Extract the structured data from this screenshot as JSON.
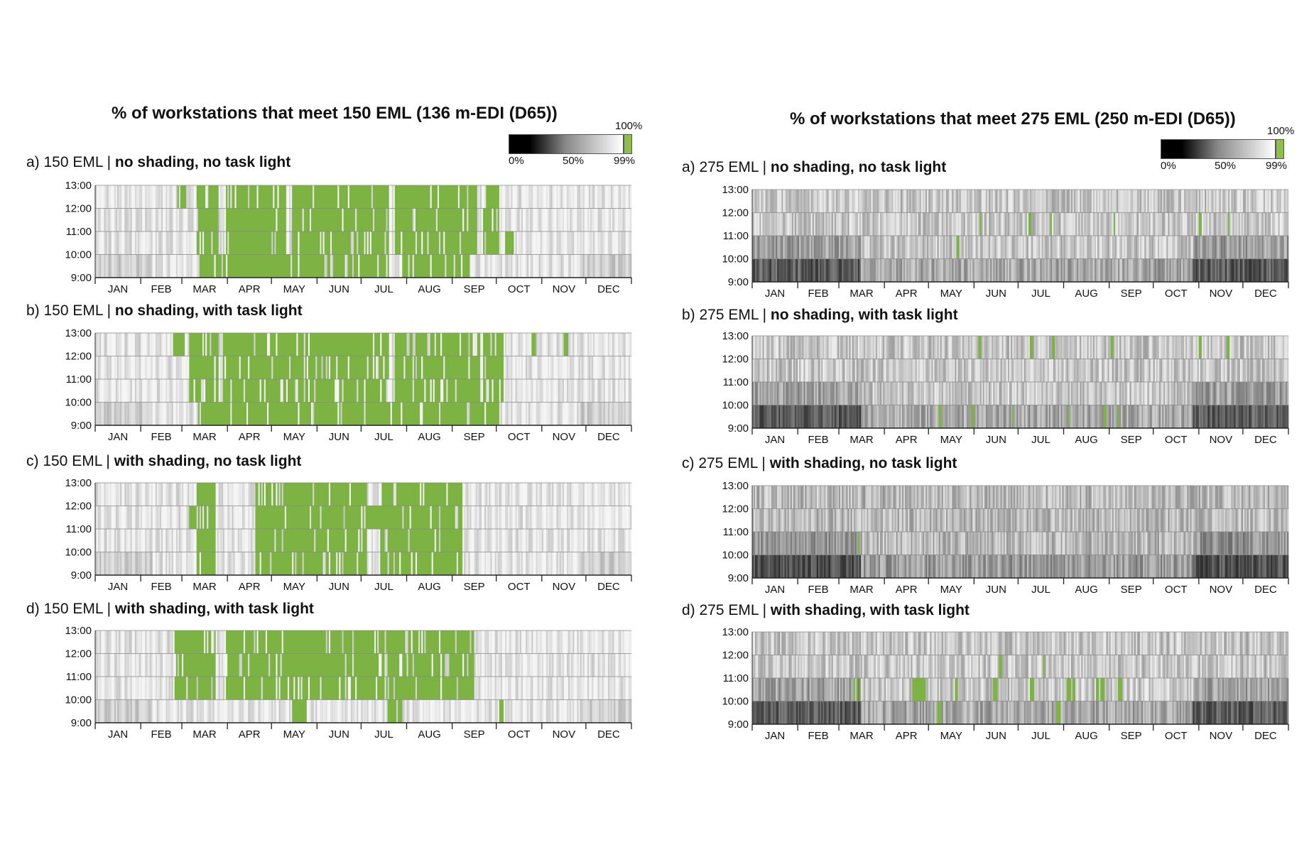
{
  "colors": {
    "meets_all": "#7cb342",
    "dark": "#000000",
    "light": "#ffffff"
  },
  "legend": {
    "low": "0%",
    "mid": "50%",
    "high": "99%",
    "full": "100%"
  },
  "left_title": "% of workstations that meet 150 EML (136 m-EDI (D65))",
  "right_title": "% of workstations that meet 275 EML (250 m-EDI (D65))",
  "panels": [
    {
      "id": "l-a",
      "prefix": "a) 150 EML | ",
      "condition": "no shading, no task light"
    },
    {
      "id": "l-b",
      "prefix": "b) 150 EML | ",
      "condition": "no shading, with task light"
    },
    {
      "id": "l-c",
      "prefix": "c) 150 EML | ",
      "condition": "with shading, no task light"
    },
    {
      "id": "l-d",
      "prefix": "d) 150 EML | ",
      "condition": "with shading, with task light"
    },
    {
      "id": "r-a",
      "prefix": "a) 275 EML | ",
      "condition": "no shading, no task light"
    },
    {
      "id": "r-b",
      "prefix": "b) 275 EML | ",
      "condition": "no shading, with task light"
    },
    {
      "id": "r-c",
      "prefix": "c) 275 EML | ",
      "condition": "with shading, no task light"
    },
    {
      "id": "r-d",
      "prefix": "d) 275 EML | ",
      "condition": "with shading, with task light"
    }
  ],
  "chart_data": {
    "type": "heatmap",
    "x_unit": "day of year",
    "xlim": [
      1,
      365
    ],
    "months": [
      "JAN",
      "FEB",
      "MAR",
      "APR",
      "MAY",
      "JUN",
      "JUL",
      "AUG",
      "SEP",
      "OCT",
      "NOV",
      "DEC"
    ],
    "hours": [
      "9:00",
      "10:00",
      "11:00",
      "12:00",
      "13:00"
    ],
    "color_scale": {
      "min": 0,
      "mid": 50,
      "max": 99,
      "full": 100
    },
    "panels": [
      {
        "id": "l-a",
        "eml": 150,
        "shading": false,
        "task_light": false,
        "green_days": [
          [
            70,
            84
          ],
          [
            90,
            130
          ],
          [
            135,
            200
          ],
          [
            205,
            260
          ],
          [
            265,
            275
          ]
        ],
        "green_partial": {
          "12:00-13:00": [
            [
              57,
              62
            ]
          ],
          "10:00-11:00": [
            [
              280,
              285
            ]
          ],
          "9:00-10:00": [
            [
              72,
              200
            ],
            [
              210,
              255
            ]
          ]
        },
        "background_percent": 75
      },
      {
        "id": "l-b",
        "eml": 150,
        "shading": false,
        "task_light": true,
        "green_days": [
          [
            65,
            84
          ],
          [
            88,
            200
          ],
          [
            205,
            262
          ],
          [
            265,
            278
          ]
        ],
        "green_partial": {
          "12:00-13:00": [
            [
              54,
              62
            ],
            [
              298,
              300
            ],
            [
              320,
              322
            ]
          ],
          "9:00-10:00": [
            [
              70,
              275
            ]
          ]
        },
        "background_percent": 75
      },
      {
        "id": "l-c",
        "eml": 150,
        "shading": true,
        "task_light": false,
        "green_days": [
          [
            70,
            82
          ],
          [
            110,
            185
          ],
          [
            195,
            250
          ]
        ],
        "green_partial": {
          "11:00-12:00": [
            [
              65,
              82
            ],
            [
              110,
              210
            ]
          ],
          "10:00-11:00": [
            [
              140,
              145
            ],
            [
              200,
              205
            ]
          ]
        },
        "background_percent": 75
      },
      {
        "id": "l-d",
        "eml": 150,
        "shading": true,
        "task_light": true,
        "green_days": [
          [
            55,
            82
          ],
          [
            90,
            258
          ]
        ],
        "green_partial": {
          "10:00-11:00": [
            [
              70,
              80
            ],
            [
              115,
              250
            ]
          ],
          "9:00-10:00": [
            [
              135,
              145
            ],
            [
              200,
              210
            ],
            [
              276,
              278
            ]
          ]
        },
        "background_percent": 75
      },
      {
        "id": "r-a",
        "eml": 275,
        "shading": false,
        "task_light": false,
        "green_days": [],
        "green_partial": {
          "11:00-12:00": [
            [
              155,
              156
            ],
            [
              189,
              190
            ],
            [
              204,
              205
            ],
            [
              246,
              247
            ],
            [
              305,
              306
            ],
            [
              324,
              325
            ]
          ],
          "10:00-11:00": [
            [
              140,
              141
            ]
          ]
        },
        "background_percent": 70
      },
      {
        "id": "r-b",
        "eml": 275,
        "shading": false,
        "task_light": true,
        "green_days": [],
        "green_partial": {
          "12:00-13:00": [
            [
              155,
              156
            ],
            [
              190,
              191
            ],
            [
              205,
              206
            ],
            [
              245,
              246
            ],
            [
              305,
              306
            ],
            [
              324,
              325
            ]
          ],
          "9:00-10:00": [
            [
              128,
              129
            ],
            [
              150,
              151
            ],
            [
              178,
              179
            ],
            [
              216,
              217
            ],
            [
              240,
              241
            ],
            [
              250,
              251
            ]
          ]
        },
        "background_percent": 70
      },
      {
        "id": "r-c",
        "eml": 275,
        "shading": true,
        "task_light": false,
        "green_days": [],
        "green_partial": {
          "10:00-11:00": [
            [
              73,
              74
            ]
          ]
        },
        "background_percent": 65
      },
      {
        "id": "r-d",
        "eml": 275,
        "shading": true,
        "task_light": true,
        "green_days": [],
        "green_partial": {
          "10:00-11:00": [
            [
              70,
              74
            ],
            [
              110,
              118
            ],
            [
              138,
              140
            ],
            [
              165,
              167
            ],
            [
              190,
              192
            ],
            [
              215,
              220
            ],
            [
              235,
              240
            ],
            [
              250,
              252
            ]
          ],
          "11:00-12:00": [
            [
              168,
              170
            ],
            [
              198,
              200
            ]
          ],
          "9:00-10:00": [
            [
              127,
              129
            ],
            [
              208,
              210
            ]
          ]
        },
        "background_percent": 65
      }
    ]
  }
}
